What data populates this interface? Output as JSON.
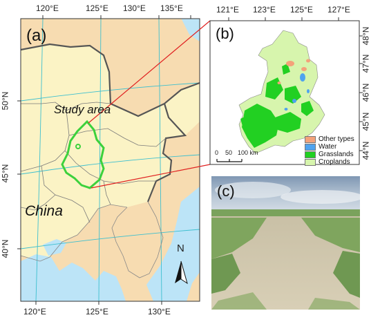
{
  "panel_a": {
    "label": "(a)",
    "study_area_label": "Study area",
    "country_label": "China",
    "north_label": "N",
    "top_ticks": [
      "120°E",
      "125°E",
      "130°E",
      "135°E"
    ],
    "bottom_ticks": [
      "120°E",
      "125°E",
      "130°E"
    ],
    "left_ticks": [
      "50°N",
      "45°N",
      "40°N"
    ],
    "colors": {
      "land_other": "#f7dcb1",
      "land_china": "#fbf3c5",
      "sea": "#bce4f7",
      "border": "#666666",
      "study_area": "#3cd13c",
      "grid": "#3cbfcf"
    }
  },
  "panel_b": {
    "label": "(b)",
    "top_ticks": [
      "121°E",
      "123°E",
      "125°E",
      "127°E"
    ],
    "right_ticks": [
      "48°N",
      "47°N",
      "46°N",
      "45°N",
      "44°N"
    ],
    "scale_bar_labels": [
      "0",
      "50",
      "100 km"
    ],
    "legend": [
      {
        "label": "Other types",
        "color": "#f4a27a"
      },
      {
        "label": "Water",
        "color": "#4fa3ef"
      },
      {
        "label": "Grasslands",
        "color": "#22d022"
      },
      {
        "label": "Croplands",
        "color": "#d7f5ad"
      }
    ]
  },
  "panel_c": {
    "label": "(c)"
  },
  "connector_color": "#e02020"
}
